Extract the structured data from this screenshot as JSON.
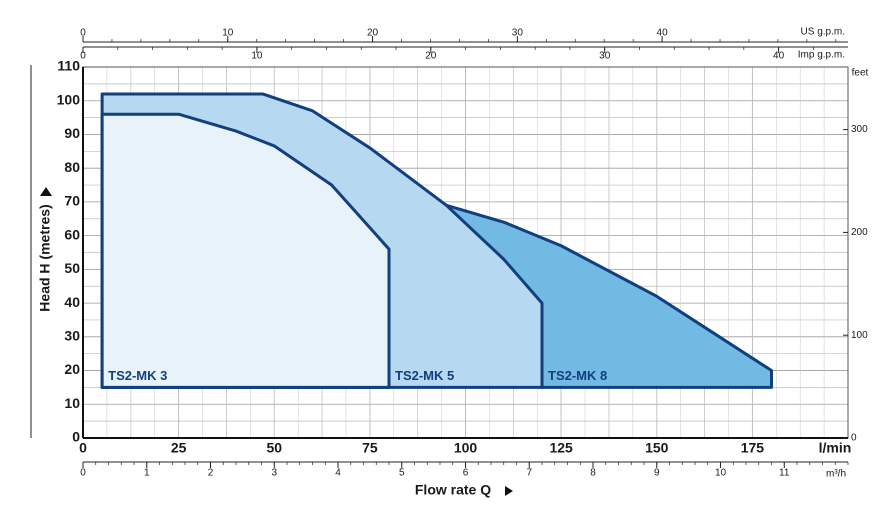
{
  "chart_data": {
    "type": "area",
    "x_label": "Flow rate  Q",
    "x_unit": "l/min",
    "y_label": "Head H (metres)",
    "xlim": [
      0,
      200
    ],
    "xticks": [
      0,
      25,
      50,
      75,
      100,
      125,
      150,
      175
    ],
    "ylim": [
      0,
      110
    ],
    "yticks": [
      0,
      10,
      20,
      30,
      40,
      50,
      60,
      70,
      80,
      90,
      100,
      110
    ],
    "y2_label": "feet",
    "y2lim": [
      0,
      360.9
    ],
    "y2ticks": [
      0,
      100,
      200,
      300
    ],
    "top_axis": {
      "label": "US g.p.m.",
      "lim": [
        0,
        52.84
      ],
      "ticks": [
        0,
        10,
        20,
        30,
        40
      ]
    },
    "top_axis2": {
      "label": "Imp g.p.m.",
      "lim": [
        0,
        43.99
      ],
      "ticks": [
        0,
        10,
        20,
        30,
        40
      ]
    },
    "bottom_axis2": {
      "label": "m³/h",
      "lim": [
        0,
        12
      ],
      "ticks": [
        0,
        1,
        2,
        3,
        4,
        5,
        6,
        7,
        8,
        9,
        10,
        11
      ]
    },
    "grid": true,
    "line_color": "#123f7d",
    "series": [
      {
        "name": "TS2-MK 3",
        "color": "#e8f2fb",
        "x": [
          5,
          5,
          25,
          40,
          50,
          65,
          80,
          80
        ],
        "values": [
          15,
          96,
          96,
          91,
          86.6,
          75,
          56,
          15
        ]
      },
      {
        "name": "TS2-MK 5",
        "color": "#b7d8f1",
        "x": [
          5,
          5,
          47,
          60,
          75,
          95,
          110,
          120,
          120
        ],
        "values": [
          15,
          102,
          102,
          97,
          86,
          69,
          53,
          40,
          15
        ]
      },
      {
        "name": "TS2-MK 8",
        "color": "#72b9e3",
        "x": [
          95,
          110,
          125,
          150,
          165,
          180,
          180,
          120
        ],
        "values": [
          69,
          64,
          57,
          42,
          31,
          20,
          15,
          15
        ]
      }
    ]
  }
}
